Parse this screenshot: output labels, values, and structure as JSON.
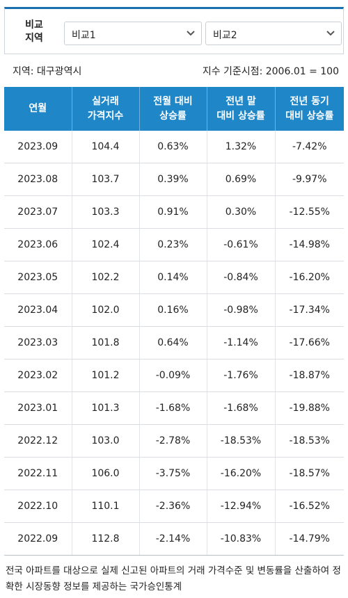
{
  "compare": {
    "label_line1": "비교",
    "label_line2": "지역",
    "select1": "비교1",
    "select2": "비교2"
  },
  "info": {
    "region": "지역: 대구광역시",
    "base": "지수 기준시점: 2006.01 = 100"
  },
  "table": {
    "headers": [
      [
        "연월"
      ],
      [
        "실거래",
        "가격지수"
      ],
      [
        "전월 대비",
        "상승률"
      ],
      [
        "전년 말",
        "대비 상승률"
      ],
      [
        "전년 동기",
        "대비 상승률"
      ]
    ],
    "rows": [
      [
        "2023.09",
        "104.4",
        "0.63%",
        "1.32%",
        "-7.42%"
      ],
      [
        "2023.08",
        "103.7",
        "0.39%",
        "0.69%",
        "-9.97%"
      ],
      [
        "2023.07",
        "103.3",
        "0.91%",
        "0.30%",
        "-12.55%"
      ],
      [
        "2023.06",
        "102.4",
        "0.23%",
        "-0.61%",
        "-14.98%"
      ],
      [
        "2023.05",
        "102.2",
        "0.14%",
        "-0.84%",
        "-16.20%"
      ],
      [
        "2023.04",
        "102.0",
        "0.16%",
        "-0.98%",
        "-17.34%"
      ],
      [
        "2023.03",
        "101.8",
        "0.64%",
        "-1.14%",
        "-17.66%"
      ],
      [
        "2023.02",
        "101.2",
        "-0.09%",
        "-1.76%",
        "-18.87%"
      ],
      [
        "2023.01",
        "101.3",
        "-1.68%",
        "-1.68%",
        "-19.88%"
      ],
      [
        "2022.12",
        "103.0",
        "-2.78%",
        "-18.53%",
        "-18.53%"
      ],
      [
        "2022.11",
        "106.0",
        "-3.75%",
        "-16.20%",
        "-18.57%"
      ],
      [
        "2022.10",
        "110.1",
        "-2.36%",
        "-12.94%",
        "-16.52%"
      ],
      [
        "2022.09",
        "112.8",
        "-2.14%",
        "-10.83%",
        "-14.79%"
      ]
    ]
  },
  "footnote": "전국 아파트를 대상으로 실제 신고된 아파트의 거래 가격수준 및 변동률을 산출하여 정확한 시장동향 정보를 제공하는 국가승인통계",
  "colors": {
    "header_bg": "#1f86c8",
    "positive": "#e0302a",
    "negative": "#2247d6",
    "accent_top": "#1a6fb0"
  },
  "icons": {
    "select_arrow": "chevron-down-icon"
  }
}
